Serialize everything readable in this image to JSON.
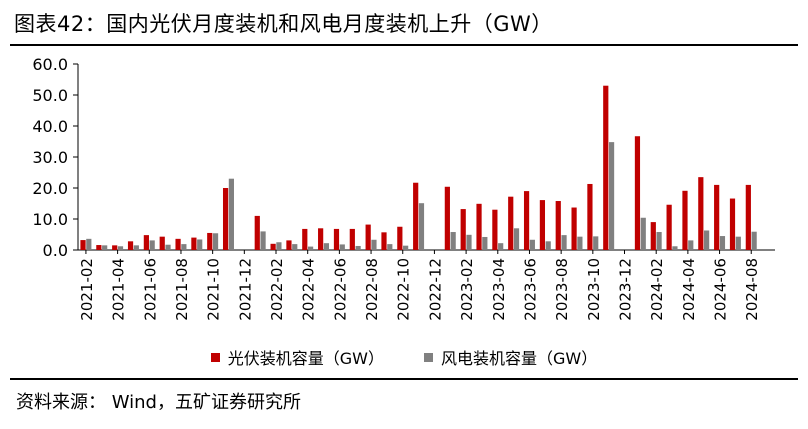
{
  "header": {
    "title": "图表42：国内光伏月度装机和风电月度装机上升（GW）"
  },
  "footer": {
    "source": "资料来源： Wind，五矿证券研究所"
  },
  "chart_data": {
    "type": "bar",
    "ylim": [
      0,
      60
    ],
    "yticks": [
      "0.0",
      "10.0",
      "20.0",
      "30.0",
      "40.0",
      "50.0",
      "60.0"
    ],
    "legend_position": "bottom",
    "grid": false,
    "categories": [
      "2021-02",
      "2021-03",
      "2021-04",
      "2021-05",
      "2021-06",
      "2021-07",
      "2021-08",
      "2021-09",
      "2021-10",
      "2021-11",
      "2021-12",
      "2022-01",
      "2022-02",
      "2022-03",
      "2022-04",
      "2022-05",
      "2022-06",
      "2022-07",
      "2022-08",
      "2022-09",
      "2022-10",
      "2022-11",
      "2022-12",
      "2023-01",
      "2023-02",
      "2023-03",
      "2023-04",
      "2023-05",
      "2023-06",
      "2023-07",
      "2023-08",
      "2023-09",
      "2023-10",
      "2023-11",
      "2023-12",
      "2024-01",
      "2024-02",
      "2024-03",
      "2024-04",
      "2024-05",
      "2024-06",
      "2024-07",
      "2024-08",
      "2024-09"
    ],
    "tick_labels": [
      "2021-02",
      "2021-04",
      "2021-06",
      "2021-08",
      "2021-10",
      "2021-12",
      "2022-02",
      "2022-04",
      "2022-06",
      "2022-08",
      "2022-10",
      "2022-12",
      "2023-02",
      "2023-04",
      "2023-06",
      "2023-08",
      "2023-10",
      "2023-12",
      "2024-02",
      "2024-04",
      "2024-06",
      "2024-08"
    ],
    "series": [
      {
        "name": "光伏装机容量（GW）",
        "color": "#c00000",
        "values": [
          3.2,
          1.6,
          1.5,
          2.8,
          4.8,
          4.3,
          3.6,
          4.0,
          5.5,
          20.0,
          null,
          11.0,
          2.0,
          3.1,
          6.8,
          7.0,
          6.8,
          6.8,
          8.2,
          5.7,
          7.5,
          21.7,
          null,
          20.4,
          13.2,
          14.9,
          13.0,
          17.2,
          19.0,
          16.1,
          15.8,
          13.7,
          21.3,
          53.0,
          null,
          36.7,
          9.0,
          14.6,
          19.1,
          23.5,
          21.0,
          16.6,
          21.0,
          null
        ]
      },
      {
        "name": "风电装机容量（GW）",
        "color": "#808080",
        "values": [
          3.6,
          1.5,
          1.2,
          1.5,
          3.1,
          1.7,
          1.9,
          3.4,
          5.4,
          23.0,
          null,
          6.0,
          2.5,
          1.9,
          1.1,
          2.2,
          1.8,
          1.3,
          3.3,
          1.9,
          1.4,
          15.1,
          null,
          5.8,
          4.9,
          4.2,
          2.2,
          7.0,
          3.3,
          2.8,
          4.8,
          4.3,
          4.4,
          34.8,
          null,
          10.4,
          5.8,
          1.2,
          3.1,
          6.3,
          4.5,
          4.3,
          5.9,
          null
        ]
      }
    ]
  }
}
